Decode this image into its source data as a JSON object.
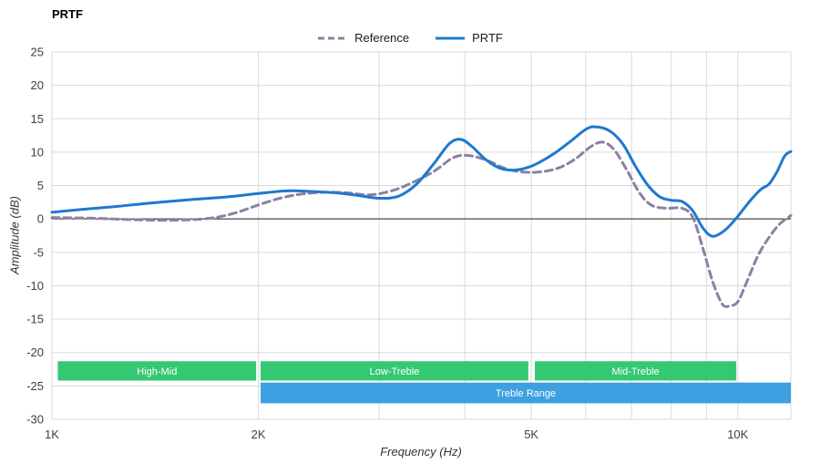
{
  "title": "PRTF",
  "chart_data": {
    "type": "line",
    "title": "PRTF",
    "xlabel": "Frequency (Hz)",
    "ylabel": "Amplitude (dB)",
    "xscale": "log",
    "xlim": [
      1000,
      11950
    ],
    "ylim": [
      -30,
      25
    ],
    "grid": true,
    "legend_position": "top-center",
    "colors": {
      "grid": "#d9d9d9",
      "zero_line": "#222222",
      "tick_text": "#404040",
      "band_green": "#35c873",
      "band_blue": "#3da0e0",
      "reference_line": "#8b80a2",
      "prtf_line": "#1f78cf"
    },
    "yticks": [
      25,
      20,
      15,
      10,
      5,
      0,
      -5,
      -10,
      -15,
      -20,
      -25,
      -30
    ],
    "xticks": [
      {
        "f": 1000,
        "label": "1K"
      },
      {
        "f": 2000,
        "label": "2K"
      },
      {
        "f": 5000,
        "label": "5K"
      },
      {
        "f": 10000,
        "label": "10K"
      }
    ],
    "x_gridlines": [
      2000,
      3000,
      4000,
      5000,
      6000,
      7000,
      8000,
      9000,
      10000
    ],
    "series": [
      {
        "name": "Reference",
        "color": "#8b80a2",
        "dashed": true,
        "points": [
          [
            1000,
            0.2
          ],
          [
            1150,
            0.1
          ],
          [
            1300,
            -0.1
          ],
          [
            1500,
            -0.2
          ],
          [
            1700,
            0.1
          ],
          [
            1850,
            0.9
          ],
          [
            2000,
            2.1
          ],
          [
            2150,
            3.1
          ],
          [
            2300,
            3.7
          ],
          [
            2500,
            4.0
          ],
          [
            2700,
            3.9
          ],
          [
            2900,
            3.6
          ],
          [
            3100,
            4.1
          ],
          [
            3300,
            5.1
          ],
          [
            3600,
            7.1
          ],
          [
            3850,
            9.2
          ],
          [
            4050,
            9.5
          ],
          [
            4300,
            8.8
          ],
          [
            4600,
            7.5
          ],
          [
            4900,
            7.0
          ],
          [
            5200,
            7.1
          ],
          [
            5500,
            7.7
          ],
          [
            5800,
            9.0
          ],
          [
            6100,
            10.8
          ],
          [
            6350,
            11.5
          ],
          [
            6600,
            10.4
          ],
          [
            6900,
            7.2
          ],
          [
            7200,
            3.8
          ],
          [
            7500,
            2.0
          ],
          [
            7900,
            1.6
          ],
          [
            8300,
            1.6
          ],
          [
            8600,
            0.2
          ],
          [
            8900,
            -4.5
          ],
          [
            9200,
            -9.5
          ],
          [
            9500,
            -12.8
          ],
          [
            9750,
            -13.0
          ],
          [
            10000,
            -12.4
          ],
          [
            10300,
            -9.5
          ],
          [
            10700,
            -5.5
          ],
          [
            11100,
            -2.8
          ],
          [
            11500,
            -0.8
          ],
          [
            11950,
            0.5
          ]
        ]
      },
      {
        "name": "PRTF",
        "color": "#1f78cf",
        "dashed": false,
        "points": [
          [
            1000,
            1.0
          ],
          [
            1100,
            1.4
          ],
          [
            1250,
            1.9
          ],
          [
            1400,
            2.4
          ],
          [
            1600,
            2.9
          ],
          [
            1800,
            3.3
          ],
          [
            2000,
            3.8
          ],
          [
            2200,
            4.2
          ],
          [
            2400,
            4.1
          ],
          [
            2600,
            3.9
          ],
          [
            2800,
            3.5
          ],
          [
            3000,
            3.1
          ],
          [
            3200,
            3.4
          ],
          [
            3400,
            5.2
          ],
          [
            3600,
            8.2
          ],
          [
            3800,
            11.3
          ],
          [
            3950,
            11.9
          ],
          [
            4100,
            10.8
          ],
          [
            4300,
            8.8
          ],
          [
            4500,
            7.6
          ],
          [
            4700,
            7.3
          ],
          [
            4900,
            7.6
          ],
          [
            5100,
            8.3
          ],
          [
            5400,
            9.8
          ],
          [
            5700,
            11.6
          ],
          [
            6000,
            13.4
          ],
          [
            6200,
            13.8
          ],
          [
            6500,
            13.2
          ],
          [
            6800,
            11.2
          ],
          [
            7100,
            7.8
          ],
          [
            7400,
            5.0
          ],
          [
            7700,
            3.3
          ],
          [
            8000,
            2.8
          ],
          [
            8300,
            2.6
          ],
          [
            8600,
            1.2
          ],
          [
            8900,
            -1.4
          ],
          [
            9200,
            -2.6
          ],
          [
            9600,
            -1.6
          ],
          [
            10000,
            0.4
          ],
          [
            10400,
            2.6
          ],
          [
            10800,
            4.4
          ],
          [
            11100,
            5.2
          ],
          [
            11400,
            7.0
          ],
          [
            11700,
            9.4
          ],
          [
            11950,
            10.1
          ]
        ]
      }
    ],
    "annotations": [
      {
        "label": "High-Mid",
        "f1": 1020,
        "f2": 1985,
        "db1": -21.3,
        "db2": -24.2,
        "color": "#35c873"
      },
      {
        "label": "Low-Treble",
        "f1": 2015,
        "f2": 4950,
        "db1": -21.3,
        "db2": -24.2,
        "color": "#35c873"
      },
      {
        "label": "Mid-Treble",
        "f1": 5060,
        "f2": 9950,
        "db1": -21.3,
        "db2": -24.2,
        "color": "#35c873"
      },
      {
        "label": "Treble Range",
        "f1": 2015,
        "f2": 11950,
        "db1": -24.5,
        "db2": -27.6,
        "color": "#3da0e0"
      }
    ]
  }
}
